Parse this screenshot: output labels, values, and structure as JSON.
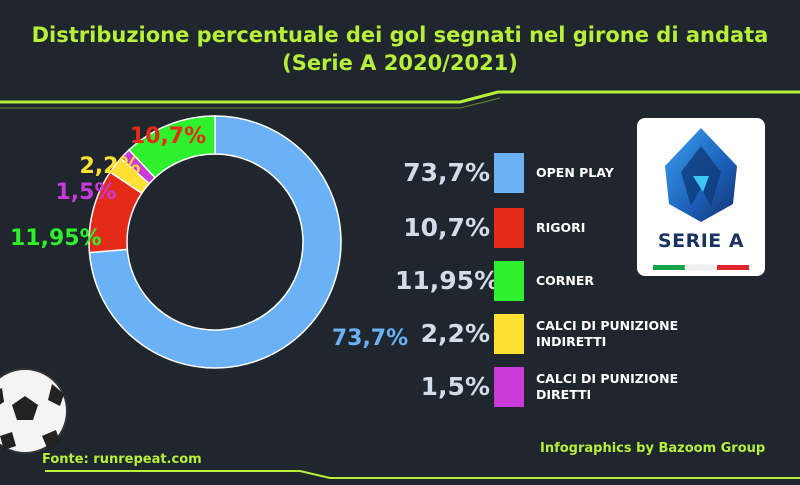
{
  "title_lines": [
    "Distribuzione percentuale dei gol segnati nel girone di andata",
    "(Serie A 2020/2021)"
  ],
  "chart_data": {
    "type": "pie",
    "donut": true,
    "categories": [
      "OPEN PLAY",
      "RIGORI",
      "CORNER",
      "CALCI DI PUNIZIONE INDIRETTI",
      "CALCI DI PUNIZIONE DIRETTI"
    ],
    "values": [
      73.7,
      10.7,
      11.95,
      2.2,
      1.5
    ],
    "value_labels": [
      "73,7%",
      "10,7%",
      "11,95%",
      "2,2%",
      "1,5%"
    ],
    "colors": [
      "#6ab1f6",
      "#e62a18",
      "#2ef02c",
      "#ffe033",
      "#c93ad9"
    ],
    "slice_order": [
      "OPEN PLAY",
      "RIGORI",
      "INDIRETTI",
      "DIRETTI",
      "CORNER"
    ],
    "legend_position": "right"
  },
  "legend": [
    {
      "pct": "73,7%",
      "label": "OPEN PLAY",
      "color": "#6ab1f6"
    },
    {
      "pct": "10,7%",
      "label": "RIGORI",
      "color": "#e62a18"
    },
    {
      "pct": "11,95%",
      "label": "CORNER",
      "color": "#2ef02c"
    },
    {
      "pct": "2,2%",
      "label": "CALCI DI PUNIZIONE\nINDIRETTI",
      "color": "#ffe033"
    },
    {
      "pct": "1,5%",
      "label": "CALCI DI PUNIZIONE\nDIRETTI",
      "color": "#c93ad9"
    }
  ],
  "logo": {
    "text": "SERIE A"
  },
  "footer": {
    "source": "Fonte: runrepeat.com",
    "credit": "Infographics by Bazoom Group"
  },
  "colors": {
    "background": "#1f262e",
    "accent": "#b7f03a"
  }
}
